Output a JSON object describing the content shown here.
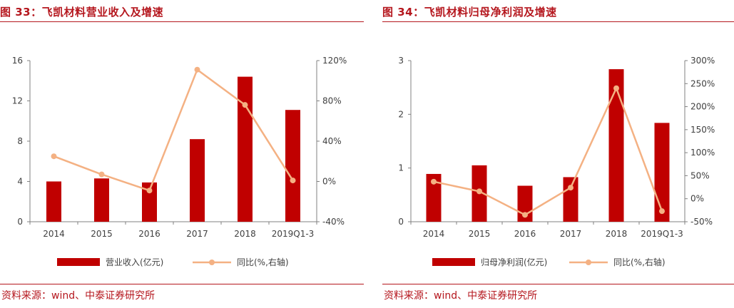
{
  "colors": {
    "bar": "#c00000",
    "line": "#f4b183",
    "title": "#b5171e"
  },
  "chart_data": [
    {
      "type": "bar+line",
      "title": "图 33：飞凯材料营业收入及增速",
      "categories": [
        "2014",
        "2015",
        "2016",
        "2017",
        "2018",
        "2019Q1-3"
      ],
      "series": [
        {
          "name": "营业收入(亿元)",
          "type": "bar",
          "axis": "left",
          "values": [
            4.0,
            4.3,
            3.9,
            8.2,
            14.4,
            11.1
          ]
        },
        {
          "name": "同比(%,右轴)",
          "type": "line",
          "axis": "right",
          "values": [
            25,
            7,
            -9,
            111,
            76,
            1
          ]
        }
      ],
      "left_axis": {
        "ylim": [
          0,
          16
        ],
        "ticks": [
          0,
          4,
          8,
          12,
          16
        ],
        "tick_labels": [
          "0",
          "4",
          "8",
          "12",
          "16"
        ]
      },
      "right_axis": {
        "ylim": [
          -40,
          120
        ],
        "ticks": [
          -40,
          0,
          40,
          80,
          120
        ],
        "tick_labels": [
          "-40%",
          "0%",
          "40%",
          "80%",
          "120%"
        ]
      },
      "legend": [
        "营业收入(亿元)",
        "同比(%,右轴)"
      ],
      "source": "资料来源：wind、中泰证券研究所"
    },
    {
      "type": "bar+line",
      "title": "图 34：飞凯材料归母净利润及增速",
      "categories": [
        "2014",
        "2015",
        "2016",
        "2017",
        "2018",
        "2019Q1-3"
      ],
      "series": [
        {
          "name": "归母净利润(亿元)",
          "type": "bar",
          "axis": "left",
          "values": [
            0.89,
            1.05,
            0.67,
            0.83,
            2.84,
            1.84
          ]
        },
        {
          "name": "同比(%,右轴)",
          "type": "line",
          "axis": "right",
          "values": [
            37,
            16,
            -35,
            24,
            240,
            -27
          ]
        }
      ],
      "left_axis": {
        "ylim": [
          0,
          3
        ],
        "ticks": [
          0,
          1,
          2,
          3
        ],
        "tick_labels": [
          "0",
          "1",
          "2",
          "3"
        ]
      },
      "right_axis": {
        "ylim": [
          -50,
          300
        ],
        "ticks": [
          -50,
          0,
          50,
          100,
          150,
          200,
          250,
          300
        ],
        "tick_labels": [
          "-50%",
          "0%",
          "50%",
          "100%",
          "150%",
          "200%",
          "250%",
          "300%"
        ]
      },
      "legend": [
        "归母净利润(亿元)",
        "同比(%,右轴)"
      ],
      "source": "资料来源：wind、中泰证券研究所"
    }
  ]
}
